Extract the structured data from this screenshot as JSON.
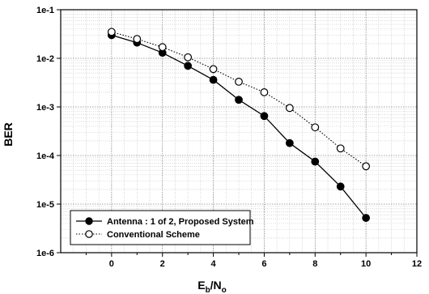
{
  "chart_data": {
    "type": "line",
    "title": "",
    "xlabel": "E_b/N_o",
    "xlabel_main": "E",
    "xlabel_sub1": "b",
    "xlabel_mid": "/N",
    "xlabel_sub2": "o",
    "ylabel": "BER",
    "xlim": [
      -2,
      12
    ],
    "ylim": [
      1e-06,
      0.1
    ],
    "yscale": "log",
    "xticks": [
      0,
      2,
      4,
      6,
      8,
      10,
      12
    ],
    "xtick_labels": [
      "0",
      "2",
      "4",
      "6",
      "8",
      "10",
      "12"
    ],
    "yticks": [
      1e-06,
      1e-05,
      0.0001,
      0.001,
      0.01,
      0.1
    ],
    "ytick_labels": [
      "1e-6",
      "1e-5",
      "1e-4",
      "1e-3",
      "1e-2",
      "1e-1"
    ],
    "grid": true,
    "legend_position": "bottom-left",
    "series": [
      {
        "name": "Antenna : 1 of 2, Proposed System",
        "marker": "filled-circle",
        "line": "solid",
        "color": "#000000",
        "x": [
          0,
          1,
          2,
          3,
          4,
          5,
          6,
          7,
          8,
          9,
          10
        ],
        "y": [
          0.03,
          0.021,
          0.013,
          0.007,
          0.0036,
          0.0014,
          0.00065,
          0.00018,
          7.5e-05,
          2.3e-05,
          5.2e-06
        ]
      },
      {
        "name": "Conventional Scheme",
        "marker": "open-circle",
        "line": "dotted",
        "color": "#000000",
        "x": [
          0,
          1,
          2,
          3,
          4,
          5,
          6,
          7,
          8,
          9,
          10
        ],
        "y": [
          0.035,
          0.025,
          0.017,
          0.0105,
          0.006,
          0.0033,
          0.002,
          0.00095,
          0.00038,
          0.00014,
          6e-05
        ]
      }
    ]
  }
}
